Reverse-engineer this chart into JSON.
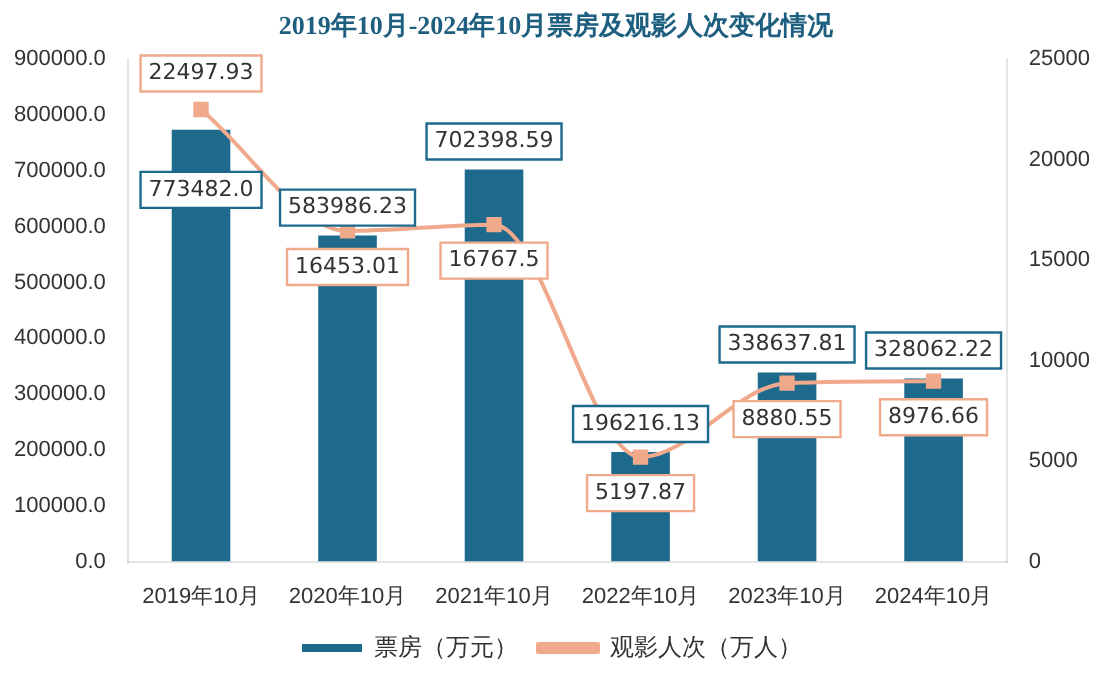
{
  "chart_data": {
    "type": "bar",
    "title": "2019年10月-2024年10月票房及观影人次变化情况",
    "categories": [
      "2019年10月",
      "2020年10月",
      "2021年10月",
      "2022年10月",
      "2023年10月",
      "2024年10月"
    ],
    "series": [
      {
        "name": "票房（万元）",
        "color": "#1e6a8d",
        "values": [
          773482.0,
          583986.23,
          702398.59,
          196216.13,
          338637.81,
          328062.22
        ],
        "value_labels": [
          "773482.0",
          "583986.23",
          "702398.59",
          "196216.13",
          "338637.81",
          "328062.22"
        ]
      },
      {
        "name": "观影人次（万人）",
        "type": "line",
        "axis": "y2",
        "color": "#f0a98a",
        "marker": "square",
        "values": [
          22497.93,
          16453.01,
          16767.5,
          5197.87,
          8880.55,
          8976.66
        ]
      }
    ],
    "ylim": [
      0,
      900000
    ],
    "yticks": [
      {
        "value": 0,
        "label": "0.0"
      },
      {
        "value": 100000,
        "label": "100000.0"
      },
      {
        "value": 200000,
        "label": "200000.0"
      },
      {
        "value": 300000,
        "label": "300000.0"
      },
      {
        "value": 400000,
        "label": "400000.0"
      },
      {
        "value": 500000,
        "label": "500000.0"
      },
      {
        "value": 600000,
        "label": "600000.0"
      },
      {
        "value": 700000,
        "label": "700000.0"
      },
      {
        "value": 800000,
        "label": "800000.0"
      },
      {
        "value": 900000,
        "label": "900000.0"
      }
    ],
    "y2lim": [
      0,
      25000
    ],
    "y2ticks": [
      0,
      5000,
      10000,
      15000,
      20000,
      25000
    ],
    "data_labels": true,
    "grid": false,
    "legend": "bottom"
  }
}
